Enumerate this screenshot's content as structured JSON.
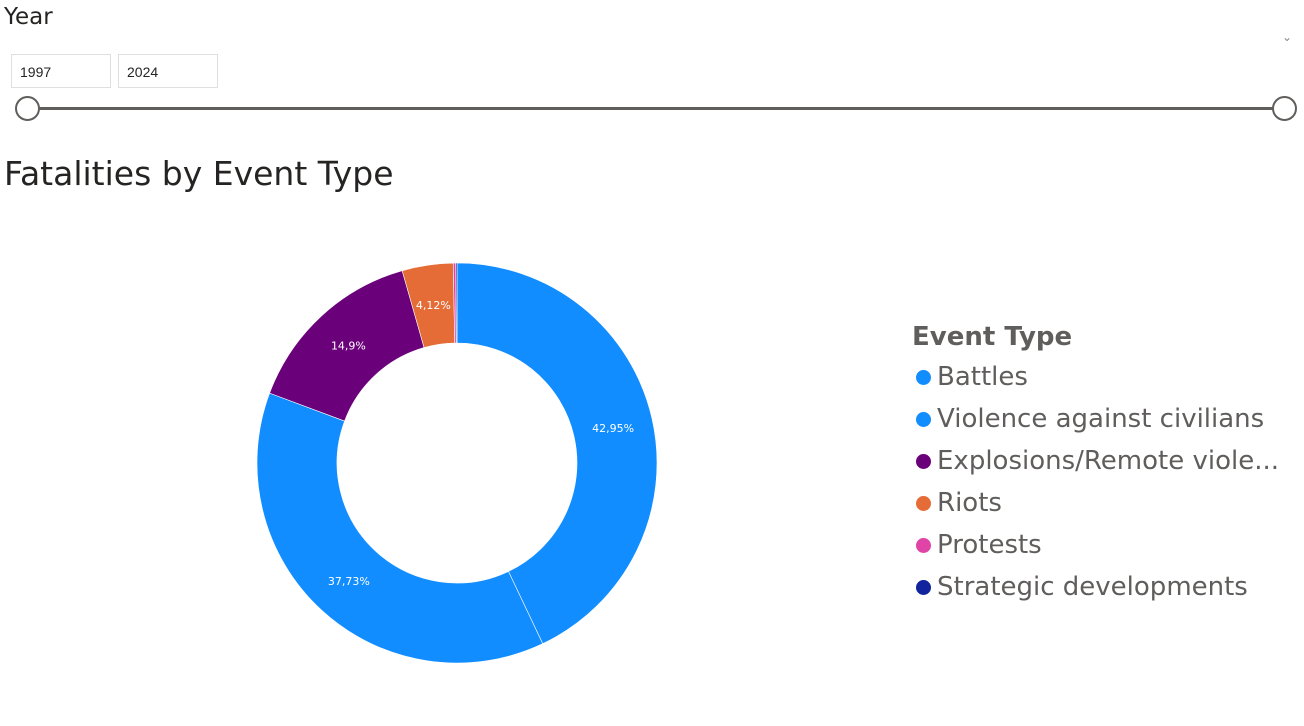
{
  "slicer": {
    "title": "Year",
    "start_value": "1997",
    "end_value": "2024",
    "collapse_icon": "chevron-down-icon"
  },
  "chart_data": {
    "type": "pie",
    "title": "Fatalities by Event Type",
    "donut": true,
    "legend_title": "Event Type",
    "legend_position": "right",
    "categories": [
      "Battles",
      "Violence against civilians",
      "Explosions/Remote viole...",
      "Riots",
      "Protests",
      "Strategic developments"
    ],
    "values": [
      42.95,
      37.73,
      14.9,
      4.12,
      0.2,
      0.1
    ],
    "labels": [
      "42,95%",
      "37,73%",
      "14,9%",
      "4,12%",
      "",
      ""
    ],
    "colors": [
      "#118DFF",
      "#118DFF",
      "#6B007B",
      "#E66C37",
      "#E044A7",
      "#12239E"
    ]
  }
}
